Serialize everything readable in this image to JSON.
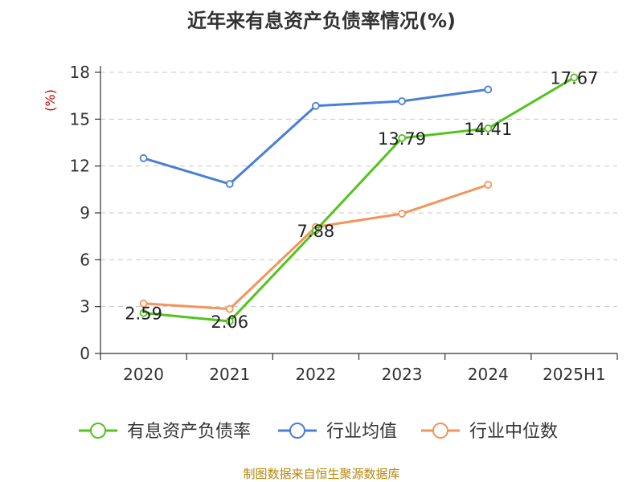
{
  "title": "近年来有息资产负债率情况(%)",
  "source": "制图数据来自恒生聚源数据库",
  "chart_data": {
    "type": "line",
    "title": "近年来有息资产负债率情况(%)",
    "ylabel": "(%)",
    "categories": [
      "2020",
      "2021",
      "2022",
      "2023",
      "2024",
      "2025H1"
    ],
    "ylim": [
      0,
      18
    ],
    "yticks": [
      0,
      3,
      6,
      9,
      12,
      15,
      18
    ],
    "grid": "horizontal-dashed",
    "legend": "bottom",
    "series": [
      {
        "name": "有息资产负债率",
        "color": "#52c41a",
        "values": [
          2.59,
          2.06,
          7.88,
          13.79,
          14.41,
          17.67
        ],
        "labels": [
          "2.59",
          "2.06",
          "7.88",
          "13.79",
          "14.41",
          "17.67"
        ]
      },
      {
        "name": "行业均值",
        "color": "#4a7fd8",
        "values": [
          12.5,
          10.85,
          15.85,
          16.15,
          16.9,
          null
        ]
      },
      {
        "name": "行业中位数",
        "color": "#f5935a",
        "values": [
          3.2,
          2.85,
          8.1,
          8.95,
          10.8,
          null
        ]
      }
    ]
  }
}
